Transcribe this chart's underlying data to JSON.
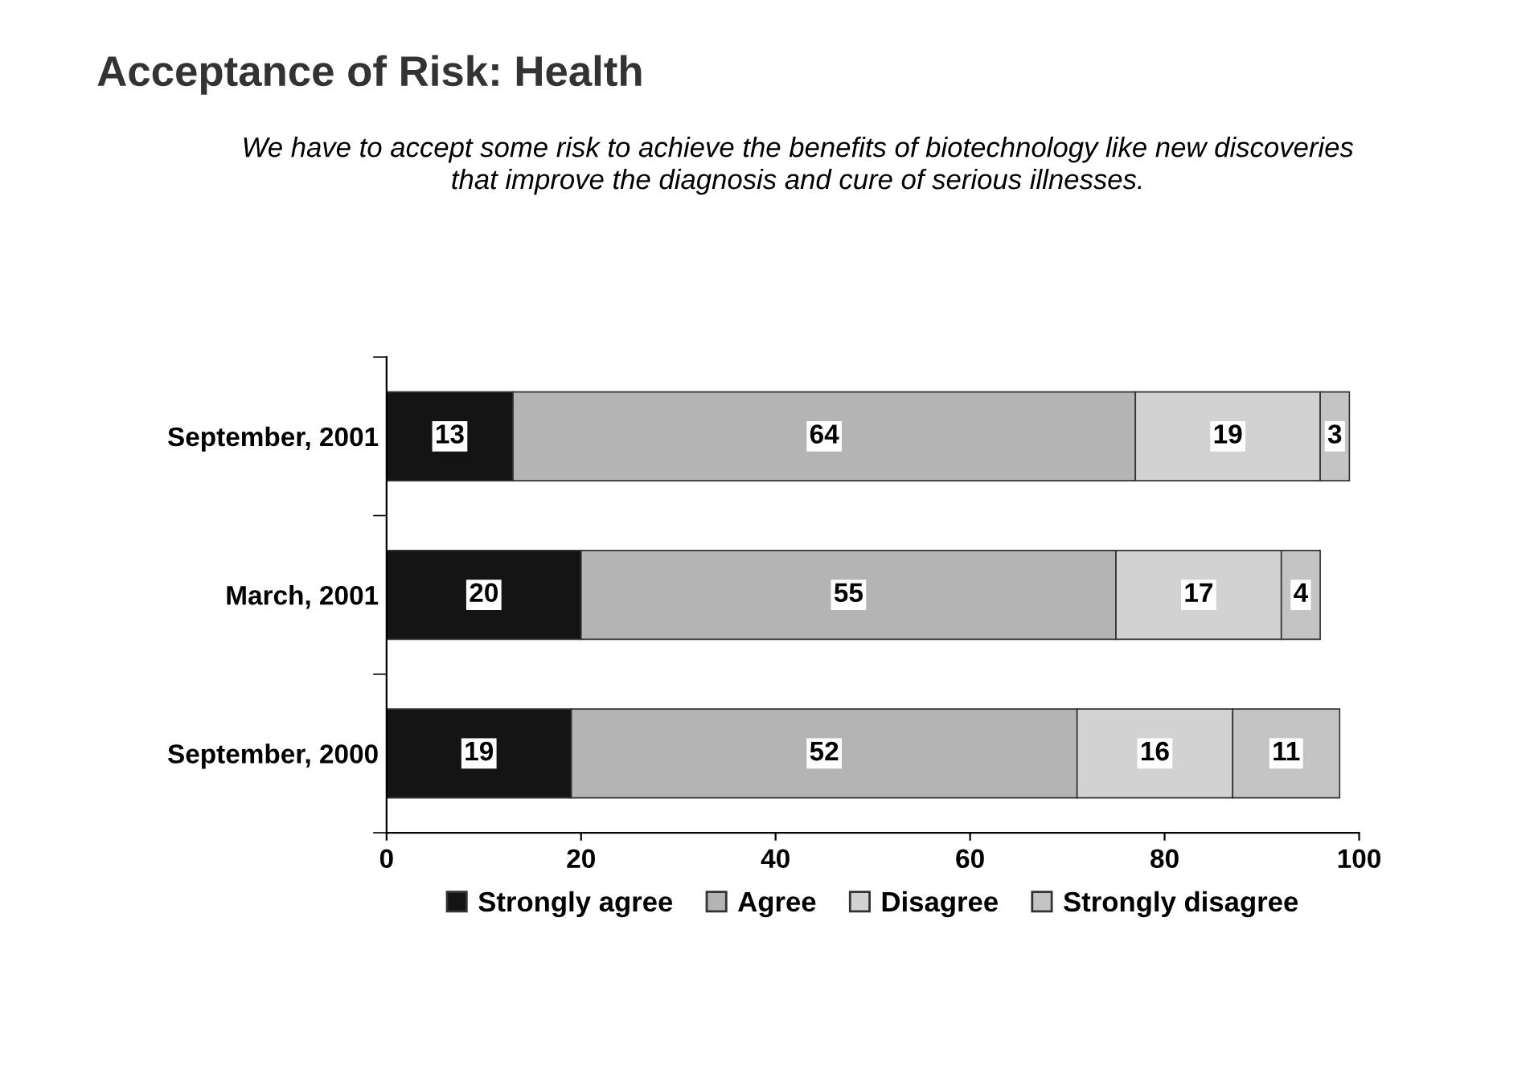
{
  "chart_data": {
    "type": "bar",
    "title": "Acceptance of Risk: Health",
    "subtitle": "We have to accept some risk to achieve the benefits of biotechnology like new discoveries\nthat improve the diagnosis and cure of serious illnesses.",
    "orientation": "horizontal",
    "stacked": true,
    "categories": [
      "September, 2001",
      "March, 2001",
      "September, 2000"
    ],
    "series": [
      {
        "name": "Strongly agree",
        "color": "#141414",
        "values": [
          13,
          20,
          19
        ]
      },
      {
        "name": "Agree",
        "color": "#b4b4b4",
        "values": [
          64,
          55,
          52
        ]
      },
      {
        "name": "Disagree",
        "color": "#d2d2d2",
        "values": [
          19,
          17,
          16
        ]
      },
      {
        "name": "Strongly disagree",
        "color": "#c4c4c4",
        "values": [
          3,
          4,
          11
        ]
      }
    ],
    "xlim": [
      0,
      100
    ],
    "xticks": [
      0,
      20,
      40,
      60,
      80,
      100
    ],
    "data_labels": true,
    "grid": false,
    "legend": "bottom"
  }
}
